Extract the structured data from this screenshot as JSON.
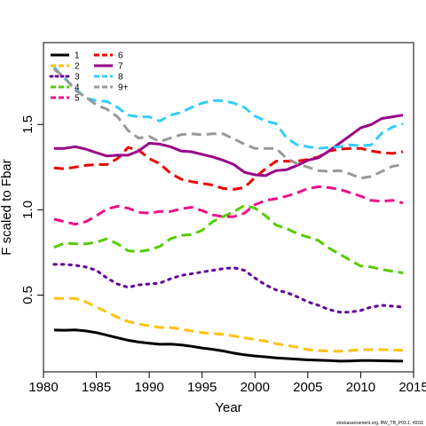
{
  "chart_data": {
    "type": "line",
    "xlabel": "Year",
    "ylabel": "F scaled to Fbar",
    "xlim": [
      1980,
      2015
    ],
    "ylim": [
      0.05,
      1.98
    ],
    "xticks": [
      1980,
      1985,
      1990,
      1995,
      2000,
      2005,
      2010,
      2015
    ],
    "yticks": [
      0.5,
      1.0,
      1.5
    ],
    "footnote": "stockassessment.org, BW_TB_P03.1, r6011",
    "legend_position": "top-left",
    "x": [
      1981,
      1982,
      1983,
      1984,
      1985,
      1986,
      1987,
      1988,
      1989,
      1990,
      1991,
      1992,
      1993,
      1994,
      1995,
      1996,
      1997,
      1998,
      1999,
      2000,
      2001,
      2002,
      2003,
      2004,
      2005,
      2006,
      2007,
      2008,
      2009,
      2010,
      2011,
      2012,
      2013,
      2014
    ],
    "series": [
      {
        "name": "1",
        "color": "#000000",
        "dash": "solid",
        "values": [
          0.295,
          0.294,
          0.296,
          0.29,
          0.28,
          0.265,
          0.25,
          0.235,
          0.225,
          0.218,
          0.212,
          0.213,
          0.208,
          0.2,
          0.19,
          0.182,
          0.172,
          0.16,
          0.15,
          0.143,
          0.138,
          0.132,
          0.128,
          0.124,
          0.12,
          0.118,
          0.116,
          0.113,
          0.114,
          0.116,
          0.116,
          0.115,
          0.114,
          0.113
        ]
      },
      {
        "name": "2",
        "color": "#FFC20A",
        "dash": "dash",
        "values": [
          0.48,
          0.48,
          0.48,
          0.46,
          0.43,
          0.4,
          0.37,
          0.345,
          0.33,
          0.32,
          0.31,
          0.31,
          0.3,
          0.29,
          0.28,
          0.275,
          0.27,
          0.26,
          0.25,
          0.24,
          0.23,
          0.215,
          0.205,
          0.195,
          0.18,
          0.175,
          0.172,
          0.17,
          0.175,
          0.18,
          0.18,
          0.18,
          0.178,
          0.176
        ]
      },
      {
        "name": "3",
        "color": "#66009A",
        "dash": "dot",
        "values": [
          0.68,
          0.68,
          0.675,
          0.665,
          0.645,
          0.6,
          0.565,
          0.545,
          0.56,
          0.565,
          0.57,
          0.595,
          0.615,
          0.625,
          0.635,
          0.645,
          0.655,
          0.66,
          0.645,
          0.6,
          0.56,
          0.53,
          0.515,
          0.49,
          0.46,
          0.44,
          0.415,
          0.4,
          0.4,
          0.41,
          0.43,
          0.44,
          0.435,
          0.43
        ]
      },
      {
        "name": "4",
        "color": "#55CC00",
        "dash": "dash",
        "values": [
          0.78,
          0.805,
          0.8,
          0.8,
          0.81,
          0.83,
          0.8,
          0.76,
          0.755,
          0.765,
          0.785,
          0.83,
          0.85,
          0.855,
          0.88,
          0.93,
          0.96,
          0.99,
          1.025,
          1.01,
          0.965,
          0.91,
          0.89,
          0.86,
          0.84,
          0.82,
          0.775,
          0.74,
          0.705,
          0.67,
          0.665,
          0.65,
          0.64,
          0.63
        ]
      },
      {
        "name": "5",
        "color": "#EE1188",
        "dash": "dash",
        "values": [
          0.945,
          0.93,
          0.915,
          0.93,
          0.965,
          1.005,
          1.02,
          1.01,
          0.985,
          0.98,
          0.99,
          0.99,
          1.005,
          1.015,
          0.995,
          0.97,
          0.96,
          0.96,
          0.98,
          1.03,
          1.055,
          1.065,
          1.08,
          1.1,
          1.125,
          1.135,
          1.13,
          1.12,
          1.1,
          1.08,
          1.055,
          1.05,
          1.055,
          1.04
        ]
      },
      {
        "name": "6",
        "color": "#EE0000",
        "dash": "dash",
        "values": [
          1.245,
          1.24,
          1.25,
          1.26,
          1.265,
          1.265,
          1.3,
          1.365,
          1.35,
          1.3,
          1.27,
          1.215,
          1.18,
          1.165,
          1.155,
          1.145,
          1.125,
          1.12,
          1.13,
          1.19,
          1.24,
          1.285,
          1.285,
          1.285,
          1.295,
          1.31,
          1.345,
          1.355,
          1.36,
          1.36,
          1.345,
          1.335,
          1.33,
          1.34
        ]
      },
      {
        "name": "7",
        "color": "#990088",
        "dash": "solid",
        "values": [
          1.36,
          1.36,
          1.37,
          1.355,
          1.335,
          1.315,
          1.32,
          1.32,
          1.345,
          1.39,
          1.385,
          1.37,
          1.345,
          1.34,
          1.325,
          1.31,
          1.29,
          1.265,
          1.22,
          1.205,
          1.2,
          1.23,
          1.235,
          1.26,
          1.29,
          1.305,
          1.345,
          1.39,
          1.435,
          1.48,
          1.5,
          1.535,
          1.545,
          1.555
        ]
      },
      {
        "name": "8",
        "color": "#33CCFF",
        "dash": "dash",
        "values": [
          1.835,
          1.77,
          1.71,
          1.655,
          1.64,
          1.635,
          1.6,
          1.555,
          1.545,
          1.545,
          1.52,
          1.555,
          1.57,
          1.6,
          1.625,
          1.64,
          1.64,
          1.625,
          1.6,
          1.55,
          1.52,
          1.505,
          1.42,
          1.38,
          1.37,
          1.36,
          1.365,
          1.37,
          1.38,
          1.375,
          1.38,
          1.45,
          1.485,
          1.505
        ]
      },
      {
        "name": "9+",
        "color": "#999999",
        "dash": "dash",
        "values": [
          1.825,
          1.775,
          1.7,
          1.66,
          1.615,
          1.59,
          1.545,
          1.465,
          1.42,
          1.43,
          1.4,
          1.42,
          1.44,
          1.445,
          1.44,
          1.445,
          1.445,
          1.415,
          1.385,
          1.36,
          1.36,
          1.36,
          1.3,
          1.27,
          1.25,
          1.23,
          1.225,
          1.23,
          1.21,
          1.185,
          1.195,
          1.225,
          1.255,
          1.265
        ]
      }
    ]
  }
}
